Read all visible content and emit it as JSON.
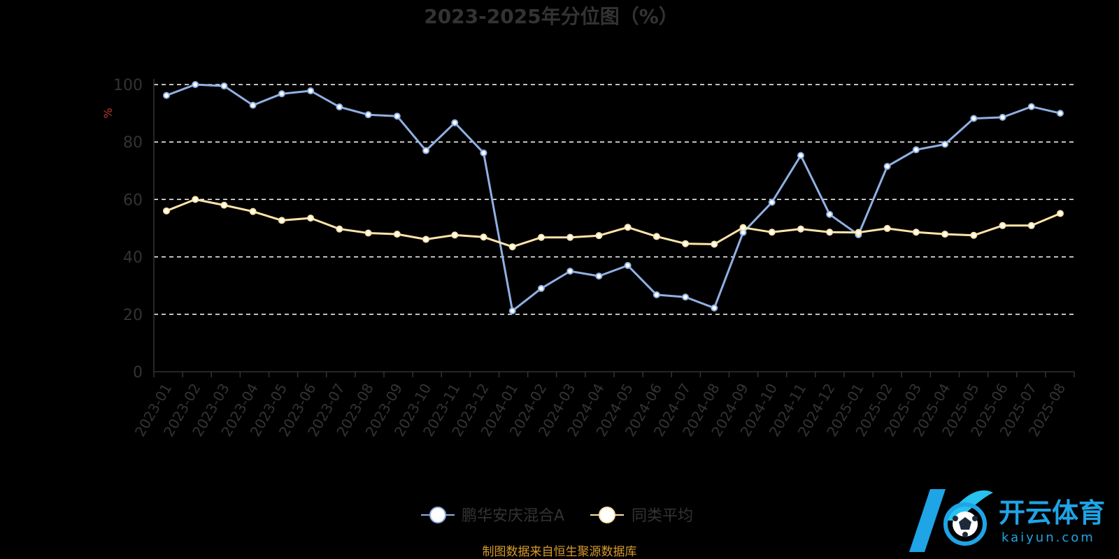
{
  "chart_data": {
    "type": "line",
    "title": "2023-2025年分位图（%）",
    "ylabel": "%",
    "ylim": [
      0,
      100
    ],
    "yticks": [
      0,
      20,
      40,
      60,
      80,
      100
    ],
    "grid": true,
    "legend_position": "bottom",
    "x": [
      "2023-01",
      "2023-02",
      "2023-03",
      "2023-04",
      "2023-05",
      "2023-06",
      "2023-07",
      "2023-08",
      "2023-09",
      "2023-10",
      "2023-11",
      "2023-12",
      "2024-01",
      "2024-02",
      "2024-03",
      "2024-04",
      "2024-05",
      "2024-06",
      "2024-07",
      "2024-08",
      "2024-09",
      "2024-10",
      "2024-11",
      "2024-12",
      "2025-01",
      "2025-02",
      "2025-03",
      "2025-04",
      "2025-05",
      "2025-06",
      "2025-07",
      "2025-08"
    ],
    "series": [
      {
        "name": "鹏华安庆混合A",
        "color": "#8fb0e3",
        "values": [
          96.2,
          100,
          99.5,
          92.8,
          96.8,
          97.8,
          92.2,
          89.5,
          89.0,
          77.0,
          86.7,
          76.2,
          21.2,
          29.0,
          35.0,
          33.3,
          37.0,
          26.8,
          26.0,
          22.2,
          48.5,
          59.0,
          75.3,
          54.8,
          47.7,
          71.5,
          77.3,
          79.2,
          88.2,
          88.6,
          92.3,
          90.0
        ]
      },
      {
        "name": "同类平均",
        "color": "#ffe4a8",
        "values": [
          56.0,
          60.0,
          58.0,
          55.8,
          52.7,
          53.5,
          49.7,
          48.3,
          47.9,
          46.1,
          47.6,
          46.9,
          43.5,
          46.8,
          46.8,
          47.4,
          50.3,
          47.1,
          44.6,
          44.4,
          50.2,
          48.6,
          49.7,
          48.6,
          48.5,
          49.9,
          48.6,
          47.9,
          47.5,
          50.9,
          50.9,
          55.1
        ]
      }
    ]
  },
  "footer": {
    "source": "制图数据来自恒生聚源数据库"
  },
  "watermark": {
    "brand": "开云体育",
    "domain": "kaiyun.com",
    "icon": "soccer-ball-k-logo"
  }
}
